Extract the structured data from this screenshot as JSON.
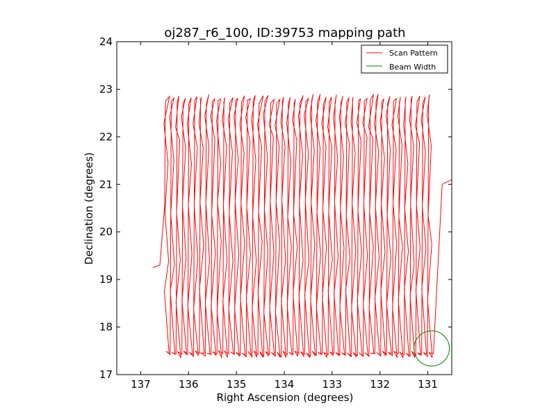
{
  "chart_data": {
    "type": "line",
    "title": "oj287_r6_100, ID:39753 mapping path",
    "xlabel": "Right Ascension (degrees)",
    "ylabel": "Declination (degrees)",
    "xlim": [
      137.5,
      130.5
    ],
    "ylim": [
      17,
      24
    ],
    "x_ticks": [
      137,
      136,
      135,
      134,
      133,
      132,
      131
    ],
    "y_ticks": [
      17,
      18,
      19,
      20,
      21,
      22,
      23,
      24
    ],
    "grid": false,
    "legend_position": "upper-right",
    "legend": [
      {
        "label": "Scan Pattern",
        "color": "#ff0000"
      },
      {
        "label": "Beam Width",
        "color": "#008000"
      }
    ],
    "series": [
      {
        "name": "Scan Pattern",
        "color": "#ff0000",
        "scan": {
          "ra_start": 136.45,
          "ra_end": 130.95,
          "columns": 46,
          "dec_low": 17.45,
          "dec_high": 22.78,
          "return": [
            130.5,
            21.1
          ]
        }
      },
      {
        "name": "Beam Width",
        "color": "#008000",
        "circle": {
          "ra": 130.92,
          "dec": 17.55,
          "radius": 0.37
        }
      }
    ]
  }
}
